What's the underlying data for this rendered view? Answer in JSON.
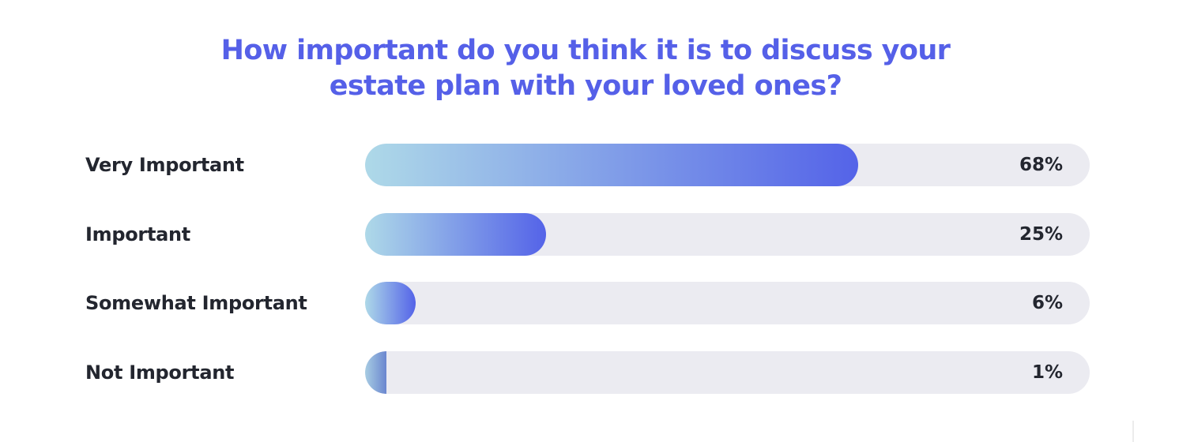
{
  "chart_data": {
    "type": "bar",
    "orientation": "horizontal",
    "title": "How important do you think it is to discuss your estate plan with your loved ones?",
    "title_lines": [
      "How important do you think it is to discuss your",
      "estate plan with your loved ones?"
    ],
    "categories": [
      "Very Important",
      "Important",
      "Somewhat Important",
      "Not Important"
    ],
    "values": [
      68,
      25,
      6,
      1
    ],
    "value_labels": [
      "68%",
      "25%",
      "6%",
      "1%"
    ],
    "unit": "%",
    "xlim": [
      0,
      100
    ],
    "grid": false,
    "legend": "none",
    "colors": {
      "title": "#5560e8",
      "bar_start": "#aed9e8",
      "bar_end": "#5463e8",
      "track": "#ebebf1",
      "text": "#23262f"
    }
  }
}
